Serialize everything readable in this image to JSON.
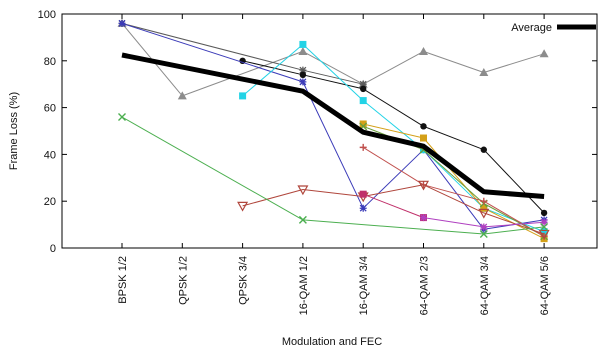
{
  "chart_data": {
    "type": "line",
    "xlabel": "Modulation and FEC",
    "ylabel": "Frame Loss (%)",
    "categories": [
      "BPSK 1/2",
      "QPSK 1/2",
      "QPSK 3/4",
      "16-QAM 1/2",
      "16-QAM 3/4",
      "64-QAM 2/3",
      "64-QAM 3/4",
      "64-QAM 5/6"
    ],
    "ylim": [
      0,
      100
    ],
    "yticks": [
      "0",
      "20",
      "40",
      "60",
      "80",
      "100"
    ],
    "grid": false,
    "legend": {
      "position": "top-right",
      "entries": [
        "Average"
      ]
    },
    "series": [
      {
        "color": "#8c8c8c",
        "marker": "triangle",
        "values": [
          96,
          65,
          null,
          84,
          70,
          84,
          75,
          83
        ]
      },
      {
        "color": "#5a5a5a",
        "marker": "star",
        "values": [
          96,
          null,
          null,
          76,
          70,
          null,
          null,
          null
        ]
      },
      {
        "color": "#111111",
        "marker": "circle",
        "values": [
          null,
          null,
          80,
          74,
          68,
          52,
          42,
          15
        ]
      },
      {
        "color": "#3b3bb8",
        "marker": "star",
        "values": [
          96,
          null,
          null,
          71,
          17,
          42,
          8,
          12
        ]
      },
      {
        "color": "#22d3e6",
        "marker": "square",
        "values": [
          null,
          null,
          65,
          87,
          63,
          42,
          17,
          7
        ]
      },
      {
        "color": "#d4a018",
        "marker": "square",
        "values": [
          null,
          null,
          null,
          null,
          53,
          47,
          17,
          4
        ]
      },
      {
        "color": "#6a9e3a",
        "marker": "x",
        "values": [
          null,
          null,
          null,
          null,
          52,
          42,
          19,
          5
        ]
      },
      {
        "color": "#c0504d",
        "marker": "plus",
        "values": [
          null,
          null,
          null,
          null,
          43,
          27,
          20,
          5
        ]
      },
      {
        "color": "#b0463c",
        "marker": "triangle-down",
        "values": [
          null,
          null,
          18,
          25,
          22,
          27,
          15,
          6
        ]
      },
      {
        "color": "#c0306a",
        "marker": "square",
        "values": [
          null,
          null,
          null,
          null,
          23,
          13,
          null,
          null
        ]
      },
      {
        "color": "#b040c0",
        "marker": "star",
        "values": [
          null,
          null,
          null,
          null,
          null,
          13,
          9,
          11
        ]
      },
      {
        "color": "#4caf50",
        "marker": "x",
        "values": [
          56,
          null,
          null,
          12,
          null,
          null,
          6,
          9
        ]
      },
      {
        "name": "Average",
        "color": "#000000",
        "marker": "none",
        "width": 5,
        "values": [
          82.5,
          null,
          null,
          67,
          49.5,
          43.5,
          24,
          22
        ]
      }
    ]
  }
}
